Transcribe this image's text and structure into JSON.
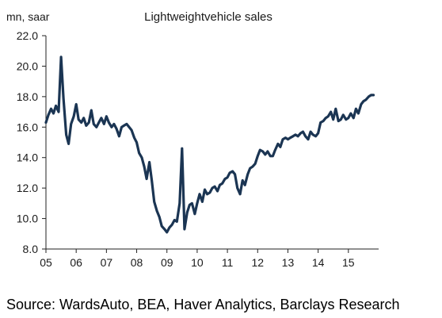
{
  "chart_data": {
    "type": "line",
    "title": "Lightweightvehicle sales",
    "ylabel": "mn, saar",
    "xlabel": "",
    "ylim": [
      8.0,
      22.0
    ],
    "yticks": [
      "8.0",
      "10.0",
      "12.0",
      "14.0",
      "16.0",
      "18.0",
      "20.0",
      "22.0"
    ],
    "xlim": [
      2005.0,
      2016.0
    ],
    "xticks": [
      "05",
      "06",
      "07",
      "08",
      "09",
      "10",
      "11",
      "12",
      "13",
      "14",
      "15"
    ],
    "grid": false,
    "legend": "none",
    "series": [
      {
        "color": "#1b3553",
        "x": [
          2005.0,
          2005.08,
          2005.17,
          2005.25,
          2005.33,
          2005.42,
          2005.5,
          2005.58,
          2005.67,
          2005.75,
          2005.83,
          2005.92,
          2006.0,
          2006.08,
          2006.17,
          2006.25,
          2006.33,
          2006.42,
          2006.5,
          2006.58,
          2006.67,
          2006.75,
          2006.83,
          2006.92,
          2007.0,
          2007.08,
          2007.17,
          2007.25,
          2007.33,
          2007.42,
          2007.5,
          2007.58,
          2007.67,
          2007.75,
          2007.83,
          2007.92,
          2008.0,
          2008.08,
          2008.17,
          2008.25,
          2008.33,
          2008.42,
          2008.5,
          2008.58,
          2008.67,
          2008.75,
          2008.83,
          2008.92,
          2009.0,
          2009.08,
          2009.17,
          2009.25,
          2009.33,
          2009.42,
          2009.5,
          2009.58,
          2009.67,
          2009.75,
          2009.83,
          2009.92,
          2010.0,
          2010.08,
          2010.17,
          2010.25,
          2010.33,
          2010.42,
          2010.5,
          2010.58,
          2010.67,
          2010.75,
          2010.83,
          2010.92,
          2011.0,
          2011.08,
          2011.17,
          2011.25,
          2011.33,
          2011.42,
          2011.5,
          2011.58,
          2011.67,
          2011.75,
          2011.83,
          2011.92,
          2012.0,
          2012.08,
          2012.17,
          2012.25,
          2012.33,
          2012.42,
          2012.5,
          2012.58,
          2012.67,
          2012.75,
          2012.83,
          2012.92,
          2013.0,
          2013.08,
          2013.17,
          2013.25,
          2013.33,
          2013.42,
          2013.5,
          2013.58,
          2013.67,
          2013.75,
          2013.83,
          2013.92,
          2014.0,
          2014.08,
          2014.17,
          2014.25,
          2014.33,
          2014.42,
          2014.5,
          2014.58,
          2014.67,
          2014.75,
          2014.83,
          2014.92,
          2015.0,
          2015.08,
          2015.17,
          2015.25,
          2015.33,
          2015.42,
          2015.5,
          2015.58,
          2015.67,
          2015.75,
          2015.83
        ],
        "y": [
          16.3,
          16.8,
          17.2,
          16.9,
          17.4,
          17.0,
          20.6,
          17.9,
          15.5,
          14.9,
          16.2,
          16.7,
          17.5,
          16.5,
          16.3,
          16.6,
          16.1,
          16.3,
          17.1,
          16.2,
          16.0,
          16.3,
          16.6,
          16.2,
          16.7,
          16.3,
          16.0,
          16.2,
          15.9,
          15.4,
          16.0,
          16.1,
          16.2,
          16.0,
          15.8,
          15.3,
          15.0,
          14.3,
          14.0,
          13.4,
          12.6,
          13.7,
          12.5,
          11.1,
          10.5,
          10.1,
          9.5,
          9.3,
          9.1,
          9.4,
          9.6,
          9.9,
          9.8,
          11.0,
          14.6,
          9.3,
          10.4,
          10.9,
          11.0,
          10.3,
          11.0,
          11.6,
          11.1,
          11.9,
          11.6,
          11.7,
          12.0,
          12.1,
          11.8,
          12.2,
          12.3,
          12.6,
          12.7,
          13.0,
          13.1,
          12.9,
          12.0,
          11.6,
          12.5,
          12.2,
          12.9,
          13.3,
          13.4,
          13.6,
          14.1,
          14.5,
          14.4,
          14.2,
          14.4,
          14.1,
          14.1,
          14.5,
          14.9,
          14.7,
          15.2,
          15.3,
          15.2,
          15.3,
          15.4,
          15.5,
          15.4,
          15.6,
          15.7,
          15.4,
          15.2,
          15.7,
          15.5,
          15.4,
          15.6,
          16.3,
          16.4,
          16.6,
          16.7,
          17.0,
          16.5,
          17.2,
          16.4,
          16.5,
          16.8,
          16.5,
          16.6,
          16.9,
          16.6,
          17.2,
          16.9,
          17.5,
          17.7,
          17.8,
          18.0,
          18.1,
          18.1
        ]
      }
    ]
  },
  "source_note": "Source: WardsAuto, BEA, Haver Analytics, Barclays Research"
}
